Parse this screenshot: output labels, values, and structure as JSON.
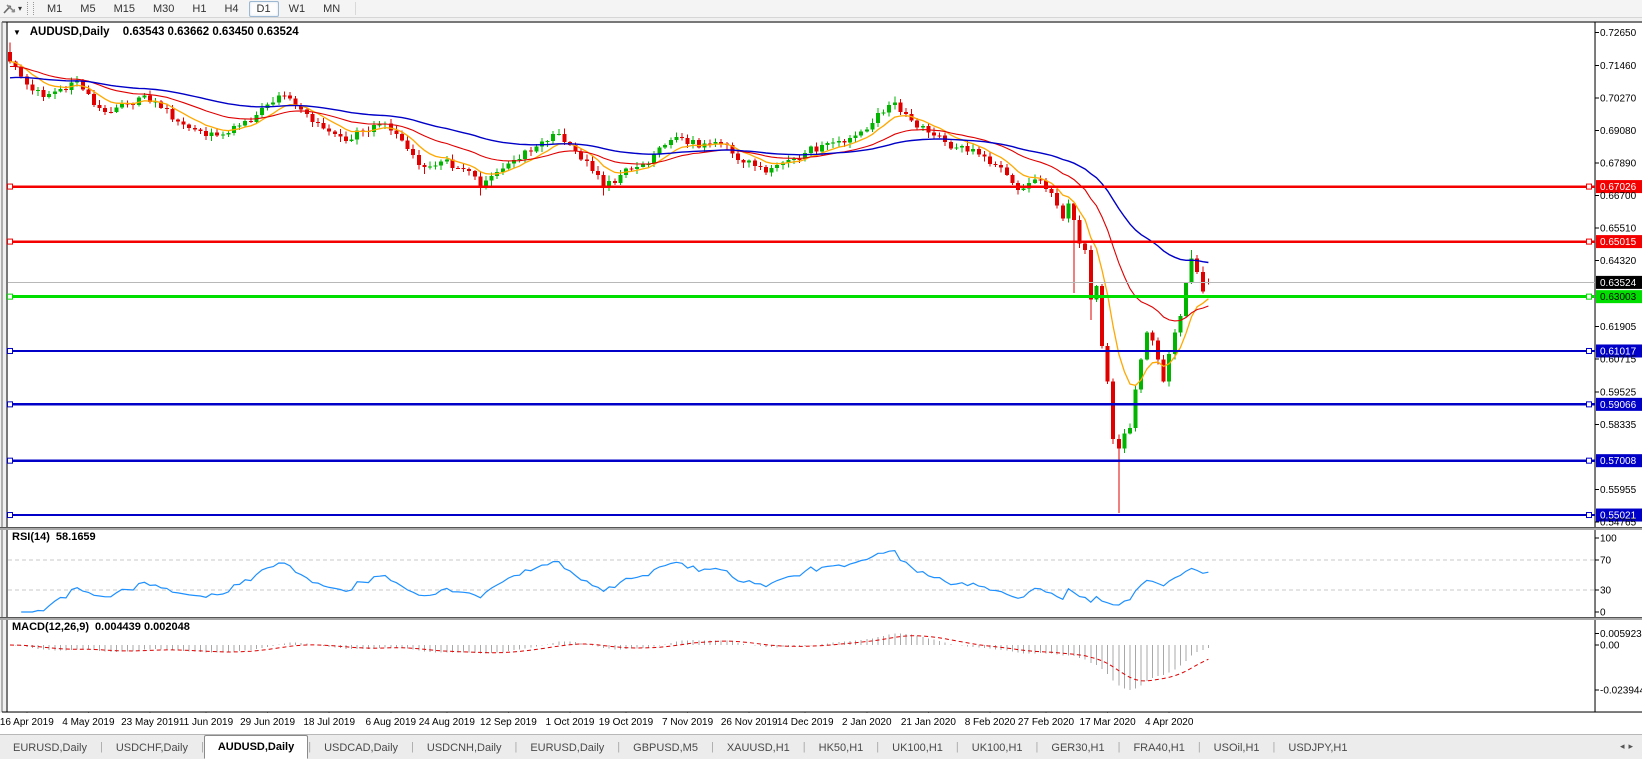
{
  "toolbar": {
    "timeframes": [
      "M1",
      "M5",
      "M15",
      "M30",
      "H1",
      "H4",
      "D1",
      "W1",
      "MN"
    ],
    "active_timeframe": "D1"
  },
  "chart_header": {
    "symbol": "AUDUSD,Daily",
    "ohlc": "0.63543 0.63662 0.63450 0.63524"
  },
  "price_axis": {
    "ticks": [
      "0.72650",
      "0.71460",
      "0.70270",
      "0.69080",
      "0.67890",
      "0.66700",
      "0.65510",
      "0.64320",
      "0.61905",
      "0.60715",
      "0.59525",
      "0.58335",
      "0.55955",
      "0.54765"
    ]
  },
  "hlines": [
    {
      "price": 0.67026,
      "label": "0.67026",
      "color": "#f40000",
      "label_bg": "#f40000",
      "label_fg": "#ffffff",
      "width": 2.4,
      "handles": true
    },
    {
      "price": 0.65015,
      "label": "0.65015",
      "color": "#f40000",
      "label_bg": "#f40000",
      "label_fg": "#ffffff",
      "width": 2.4,
      "handles": true
    },
    {
      "price": 0.63524,
      "label": "0.63524",
      "color": "#b8b8b8",
      "label_bg": "#000000",
      "label_fg": "#ffffff",
      "width": 1,
      "handles": false
    },
    {
      "price": 0.63003,
      "label": "0.63003",
      "color": "#00de00",
      "label_bg": "#00de00",
      "label_fg": "#000000",
      "width": 3,
      "handles": true
    },
    {
      "price": 0.61017,
      "label": "0.61017",
      "color": "#0000c8",
      "label_bg": "#0000c8",
      "label_fg": "#ffffff",
      "width": 2.4,
      "handles": true
    },
    {
      "price": 0.59066,
      "label": "0.59066",
      "color": "#0000c8",
      "label_bg": "#0000c8",
      "label_fg": "#ffffff",
      "width": 2.4,
      "handles": true
    },
    {
      "price": 0.57008,
      "label": "0.57008",
      "color": "#0000c8",
      "label_bg": "#0000c8",
      "label_fg": "#ffffff",
      "width": 2.4,
      "handles": true
    },
    {
      "price": 0.55021,
      "label": "0.55021",
      "color": "#0000c8",
      "label_bg": "#0000c8",
      "label_fg": "#ffffff",
      "width": 2.4,
      "handles": true
    }
  ],
  "rsi": {
    "name": "RSI(14)",
    "value": "58.1659",
    "ticks": [
      "100",
      "70",
      "30",
      "0"
    ],
    "dashed_levels": [
      70,
      30
    ]
  },
  "macd": {
    "name": "MACD(12,26,9)",
    "value": "0.004439 0.002048",
    "ticks": [
      "0.005923",
      "0.00",
      "-0.023944"
    ]
  },
  "time_axis": {
    "dates": [
      "16 Apr 2019",
      "4 May 2019",
      "23 May 2019",
      "11 Jun 2019",
      "29 Jun 2019",
      "18 Jul 2019",
      "6 Aug 2019",
      "24 Aug 2019",
      "12 Sep 2019",
      "1 Oct 2019",
      "19 Oct 2019",
      "7 Nov 2019",
      "26 Nov 2019",
      "14 Dec 2019",
      "2 Jan 2020",
      "21 Jan 2020",
      "8 Feb 2020",
      "27 Feb 2020",
      "17 Mar 2020",
      "4 Apr 2020"
    ]
  },
  "tabs": {
    "items": [
      "EURUSD,Daily",
      "USDCHF,Daily",
      "AUDUSD,Daily",
      "USDCAD,Daily",
      "USDCNH,Daily",
      "EURUSD,Daily",
      "GBPUSD,M5",
      "XAUUSD,H1",
      "HK50,H1",
      "UK100,H1",
      "UK100,H1",
      "GER30,H1",
      "FRA40,H1",
      "USOil,H1",
      "USDJPY,H1"
    ],
    "active_index": 2,
    "scroll_left_icon": "◂",
    "scroll_right_icon": "▸"
  },
  "chart_data": {
    "type": "candlestick",
    "symbol": "AUDUSD",
    "period": "Daily",
    "ohlc_current": {
      "open": 0.63543,
      "high": 0.63662,
      "low": 0.6345,
      "close": 0.63524
    },
    "first_open": 0.7195,
    "candle_count": 215,
    "price_axis_top": 0.7265,
    "price_axis_bottom": 0.54765,
    "up_color": "#00b400",
    "down_color": "#e00000",
    "close_anchors": [
      [
        0,
        0.716
      ],
      [
        3,
        0.7075
      ],
      [
        6,
        0.703
      ],
      [
        9,
        0.706
      ],
      [
        12,
        0.709
      ],
      [
        15,
        0.7
      ],
      [
        18,
        0.6975
      ],
      [
        21,
        0.7005
      ],
      [
        24,
        0.7035
      ],
      [
        27,
        0.699
      ],
      [
        31,
        0.693
      ],
      [
        34,
        0.6905
      ],
      [
        37,
        0.689
      ],
      [
        41,
        0.6925
      ],
      [
        44,
        0.6965
      ],
      [
        47,
        0.701
      ],
      [
        48,
        0.7035
      ],
      [
        52,
        0.6985
      ],
      [
        55,
        0.6935
      ],
      [
        58,
        0.6895
      ],
      [
        60,
        0.687
      ],
      [
        63,
        0.6905
      ],
      [
        66,
        0.693
      ],
      [
        69,
        0.6895
      ],
      [
        71,
        0.684
      ],
      [
        74,
        0.6775
      ],
      [
        77,
        0.6795
      ],
      [
        80,
        0.677
      ],
      [
        82,
        0.676
      ],
      [
        84,
        0.6705
      ],
      [
        87,
        0.6755
      ],
      [
        90,
        0.68
      ],
      [
        93,
        0.683
      ],
      [
        96,
        0.687
      ],
      [
        98,
        0.6895
      ],
      [
        101,
        0.683
      ],
      [
        104,
        0.676
      ],
      [
        106,
        0.67
      ],
      [
        109,
        0.6745
      ],
      [
        112,
        0.6775
      ],
      [
        114,
        0.6785
      ],
      [
        117,
        0.6855
      ],
      [
        120,
        0.688
      ],
      [
        123,
        0.6845
      ],
      [
        125,
        0.686
      ],
      [
        128,
        0.6855
      ],
      [
        131,
        0.679
      ],
      [
        134,
        0.6775
      ],
      [
        136,
        0.677
      ],
      [
        139,
        0.68
      ],
      [
        142,
        0.6825
      ],
      [
        145,
        0.6855
      ],
      [
        148,
        0.687
      ],
      [
        151,
        0.689
      ],
      [
        154,
        0.6935
      ],
      [
        157,
        0.7
      ],
      [
        158,
        0.701
      ],
      [
        161,
        0.6945
      ],
      [
        164,
        0.69
      ],
      [
        167,
        0.6865
      ],
      [
        169,
        0.6845
      ],
      [
        172,
        0.684
      ],
      [
        175,
        0.6785
      ],
      [
        178,
        0.6745
      ],
      [
        180,
        0.669
      ],
      [
        182,
        0.6715
      ],
      [
        184,
        0.6725
      ],
      [
        186,
        0.668
      ],
      [
        188,
        0.6585
      ],
      [
        189,
        0.664
      ],
      [
        190,
        0.658
      ],
      [
        191,
        0.6495
      ],
      [
        192,
        0.647
      ],
      [
        193,
        0.629
      ],
      [
        194,
        0.634
      ],
      [
        195,
        0.612
      ],
      [
        196,
        0.599
      ],
      [
        197,
        0.578
      ],
      [
        198,
        0.5745
      ],
      [
        199,
        0.58
      ],
      [
        200,
        0.582
      ],
      [
        201,
        0.596
      ],
      [
        202,
        0.607
      ],
      [
        203,
        0.617
      ],
      [
        204,
        0.614
      ],
      [
        205,
        0.607
      ],
      [
        206,
        0.599
      ],
      [
        207,
        0.609
      ],
      [
        208,
        0.617
      ],
      [
        209,
        0.623
      ],
      [
        210,
        0.635
      ],
      [
        211,
        0.644
      ],
      [
        212,
        0.639
      ],
      [
        213,
        0.632
      ],
      [
        214,
        0.63524
      ]
    ],
    "wick_overrides": [
      {
        "i": 0,
        "high": 0.723
      },
      {
        "i": 48,
        "high": 0.7048
      },
      {
        "i": 74,
        "low": 0.6748
      },
      {
        "i": 84,
        "low": 0.667
      },
      {
        "i": 106,
        "low": 0.667
      },
      {
        "i": 158,
        "high": 0.7032
      },
      {
        "i": 190,
        "low": 0.6313
      },
      {
        "i": 193,
        "low": 0.6215
      },
      {
        "i": 198,
        "low": 0.551
      },
      {
        "i": 211,
        "high": 0.647
      }
    ],
    "moving_averages": [
      {
        "name": "fast",
        "method": "ema",
        "period": 8,
        "color": "#ffa800",
        "width": 1.3
      },
      {
        "name": "medium",
        "method": "ema",
        "period": 24,
        "color": "#e00000",
        "width": 1.1
      },
      {
        "name": "slow",
        "method": "ema",
        "period": 55,
        "color": "#0000c8",
        "width": 1.4
      }
    ],
    "rsi": {
      "period": 14,
      "last_value": 58.1659,
      "levels": [
        70,
        30
      ],
      "range": [
        0,
        100
      ],
      "color": "#1e90ff"
    },
    "macd": {
      "fast": 12,
      "slow": 26,
      "signal_period": 9,
      "last_macd": 0.004439,
      "last_signal": 0.002048,
      "max": 0.005923,
      "min": -0.023944,
      "hist_color": "#a8a8a8",
      "signal_color": "#e00000"
    },
    "horizontal_levels": [
      0.67026,
      0.65015,
      0.63524,
      0.63003,
      0.61017,
      0.59066,
      0.57008,
      0.55021
    ],
    "date_label_indices": [
      3,
      14,
      25,
      35,
      46,
      57,
      68,
      78,
      89,
      100,
      110,
      121,
      132,
      142,
      153,
      164,
      175,
      185,
      196,
      207
    ]
  }
}
